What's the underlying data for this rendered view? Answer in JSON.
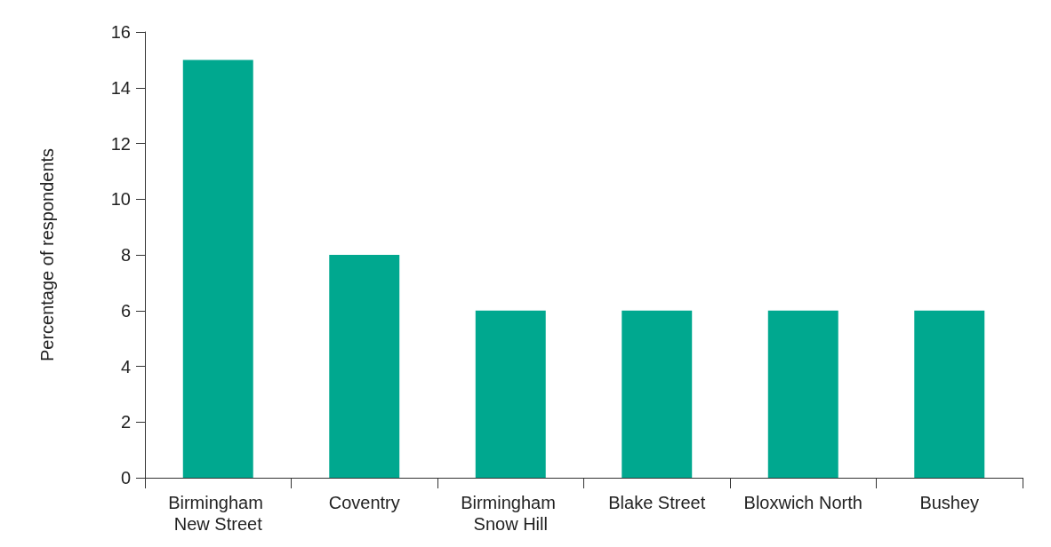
{
  "chart_data": {
    "type": "bar",
    "ylabel": "Percentage of respondents",
    "categories": [
      "Birmingham New Street",
      "Coventry",
      "Birmingham Snow Hill",
      "Blake Street",
      "Bloxwich North",
      "Bushey"
    ],
    "values": [
      15,
      8,
      6,
      6,
      6,
      6
    ],
    "color": "#00a88f",
    "ylim": [
      0,
      16
    ],
    "yticks": [
      0,
      2,
      4,
      6,
      8,
      10,
      12,
      14,
      16
    ],
    "grid": false
  }
}
